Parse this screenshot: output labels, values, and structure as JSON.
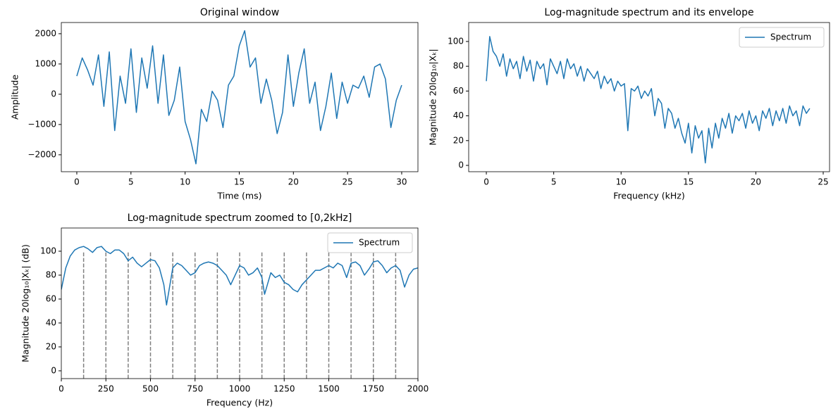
{
  "chart_data": [
    {
      "type": "line",
      "title": "Original window",
      "xlabel": "Time (ms)",
      "ylabel": "Amplitude",
      "x": [
        0,
        0.5,
        1,
        1.5,
        2,
        2.5,
        3,
        3.5,
        4,
        4.5,
        5,
        5.5,
        6,
        6.5,
        7,
        7.5,
        8,
        8.5,
        9,
        9.5,
        10,
        10.5,
        11,
        11.5,
        12,
        12.5,
        13,
        13.5,
        14,
        14.5,
        15,
        15.5,
        16,
        16.5,
        17,
        17.5,
        18,
        18.5,
        19,
        19.5,
        20,
        20.5,
        21,
        21.5,
        22,
        22.5,
        23,
        23.5,
        24,
        24.5,
        25,
        25.5,
        26,
        26.5,
        27,
        27.5,
        28,
        28.5,
        29,
        29.5,
        30
      ],
      "series": [
        {
          "color": "#1f77b4",
          "values": [
            600,
            1200,
            800,
            300,
            1300,
            -400,
            1400,
            -1200,
            600,
            -300,
            1500,
            -600,
            1200,
            200,
            1600,
            -300,
            1300,
            -700,
            -200,
            900,
            -900,
            -1500,
            -2300,
            -500,
            -900,
            100,
            -200,
            -1100,
            300,
            600,
            1600,
            2100,
            900,
            1200,
            -300,
            500,
            -200,
            -1300,
            -600,
            1300,
            -400,
            700,
            1500,
            -300,
            400,
            -1200,
            -400,
            700,
            -800,
            400,
            -300,
            300,
            200,
            600,
            -100,
            900,
            1000,
            500,
            -1100,
            -200,
            300
          ]
        }
      ],
      "xlim": [
        -1.43,
        31.5
      ],
      "ylim": [
        -2560,
        2370
      ],
      "xticks": [
        0,
        5,
        10,
        15,
        20,
        25,
        30
      ],
      "yticks": [
        {
          "value": -2000,
          "label": "−2000"
        },
        {
          "value": -1000,
          "label": "−1000"
        },
        0,
        1000,
        2000
      ]
    },
    {
      "type": "line",
      "title": "Log-magnitude spectrum and its envelope",
      "xlabel": "Frequency (kHz)",
      "ylabel": "Magnitude 20log₁₀|Xₖ|",
      "x": [
        0,
        0.25,
        0.5,
        0.75,
        1,
        1.25,
        1.5,
        1.75,
        2,
        2.25,
        2.5,
        2.75,
        3,
        3.25,
        3.5,
        3.75,
        4,
        4.25,
        4.5,
        4.75,
        5,
        5.25,
        5.5,
        5.75,
        6,
        6.25,
        6.5,
        6.75,
        7,
        7.25,
        7.5,
        7.75,
        8,
        8.25,
        8.5,
        8.75,
        9,
        9.25,
        9.5,
        9.75,
        10,
        10.25,
        10.5,
        10.75,
        11,
        11.25,
        11.5,
        11.75,
        12,
        12.25,
        12.5,
        12.75,
        13,
        13.25,
        13.5,
        13.75,
        14,
        14.25,
        14.5,
        14.75,
        15,
        15.25,
        15.5,
        15.75,
        16,
        16.25,
        16.5,
        16.75,
        17,
        17.25,
        17.5,
        17.75,
        18,
        18.25,
        18.5,
        18.75,
        19,
        19.25,
        19.5,
        19.75,
        20,
        20.25,
        20.5,
        20.75,
        21,
        21.25,
        21.5,
        21.75,
        22,
        22.25,
        22.5,
        22.75,
        23,
        23.25,
        23.5,
        23.75,
        24
      ],
      "series": [
        {
          "name": "Spectrum",
          "color": "#1f77b4",
          "values": [
            68,
            104,
            92,
            88,
            80,
            90,
            72,
            86,
            78,
            84,
            70,
            88,
            76,
            85,
            68,
            84,
            78,
            82,
            65,
            86,
            80,
            74,
            84,
            70,
            86,
            78,
            82,
            72,
            80,
            68,
            78,
            74,
            70,
            76,
            62,
            72,
            66,
            70,
            60,
            68,
            64,
            66,
            28,
            62,
            60,
            64,
            54,
            60,
            56,
            62,
            40,
            54,
            50,
            30,
            46,
            42,
            30,
            38,
            26,
            18,
            34,
            10,
            32,
            22,
            28,
            2,
            30,
            14,
            34,
            22,
            38,
            30,
            42,
            26,
            40,
            36,
            42,
            30,
            44,
            34,
            40,
            28,
            44,
            38,
            46,
            32,
            44,
            36,
            46,
            34,
            48,
            40,
            44,
            32,
            48,
            42,
            46
          ]
        }
      ],
      "xlim": [
        -1.31,
        25.47
      ],
      "ylim": [
        -5.1,
        115.3
      ],
      "xticks": [
        0,
        5,
        10,
        15,
        20,
        25
      ],
      "yticks": [
        0,
        20,
        40,
        60,
        80,
        100
      ],
      "legend": "upper right"
    },
    {
      "type": "line",
      "title": "Log-magnitude spectrum zoomed to [0,2kHz]",
      "xlabel": "Frequency (Hz)",
      "ylabel": "Magnitude 20log₁₀|Xₖ| (dB)",
      "x": [
        0,
        25,
        50,
        75,
        100,
        125,
        150,
        175,
        200,
        225,
        250,
        275,
        300,
        325,
        350,
        375,
        400,
        425,
        450,
        475,
        500,
        525,
        550,
        575,
        590,
        625,
        650,
        675,
        700,
        725,
        750,
        775,
        800,
        825,
        850,
        875,
        900,
        925,
        950,
        975,
        1000,
        1025,
        1050,
        1075,
        1100,
        1125,
        1140,
        1175,
        1200,
        1225,
        1250,
        1275,
        1300,
        1325,
        1350,
        1375,
        1400,
        1425,
        1450,
        1475,
        1500,
        1525,
        1550,
        1575,
        1600,
        1625,
        1650,
        1675,
        1700,
        1725,
        1750,
        1775,
        1800,
        1825,
        1850,
        1875,
        1900,
        1925,
        1950,
        1975,
        2000
      ],
      "series": [
        {
          "name": "Spectrum",
          "color": "#1f77b4",
          "values": [
            68,
            86,
            96,
            101,
            103,
            104,
            102,
            99,
            103,
            104,
            100,
            98,
            101,
            101,
            98,
            92,
            95,
            90,
            87,
            90,
            93,
            92,
            86,
            72,
            55,
            86,
            90,
            88,
            84,
            80,
            82,
            88,
            90,
            91,
            90,
            88,
            84,
            80,
            72,
            80,
            88,
            86,
            80,
            82,
            86,
            78,
            64,
            82,
            78,
            80,
            74,
            72,
            68,
            66,
            72,
            76,
            80,
            84,
            84,
            86,
            88,
            86,
            90,
            88,
            78,
            90,
            91,
            88,
            80,
            85,
            91,
            92,
            88,
            82,
            86,
            88,
            84,
            70,
            80,
            85,
            86
          ]
        }
      ],
      "xlim": [
        0,
        2000
      ],
      "ylim": [
        -6.5,
        119.4
      ],
      "xticks": [
        0,
        250,
        500,
        750,
        1000,
        1250,
        1500,
        1750,
        2000
      ],
      "yticks": [
        0,
        20,
        40,
        60,
        80,
        100
      ],
      "legend": "upper right",
      "vlines": {
        "x": [
          125,
          250,
          375,
          500,
          625,
          750,
          875,
          1000,
          1125,
          1250,
          1375,
          1500,
          1625,
          1750,
          1875
        ],
        "ymin": -6.5,
        "ymax": 99,
        "color": "#808080"
      }
    }
  ]
}
